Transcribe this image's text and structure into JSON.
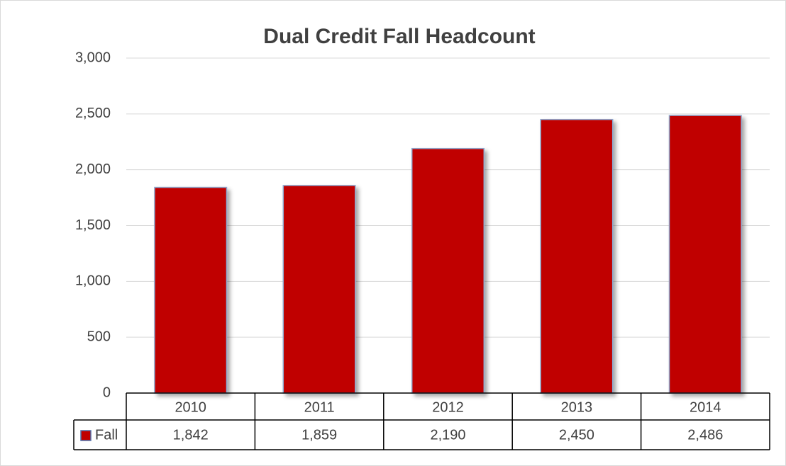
{
  "chart_data": {
    "type": "bar",
    "title": "Dual Credit Fall Headcount",
    "categories": [
      "2010",
      "2011",
      "2012",
      "2013",
      "2014"
    ],
    "series": [
      {
        "name": "Fall",
        "color": "#c00000",
        "values": [
          1842,
          1859,
          2190,
          2450,
          2486
        ],
        "value_labels": [
          "1,842",
          "1,859",
          "2,190",
          "2,450",
          "2,486"
        ]
      }
    ],
    "ylim": [
      0,
      3000
    ],
    "yticks": [
      0,
      500,
      {
        "value": 1000,
        "label": "1,000"
      },
      {
        "value": 1500,
        "label": "1,500"
      },
      {
        "value": 2000,
        "label": "2,000"
      },
      {
        "value": 2500,
        "label": "2,500"
      },
      {
        "value": 3000,
        "label": "3,000"
      }
    ],
    "grid": true,
    "data_table": true
  }
}
